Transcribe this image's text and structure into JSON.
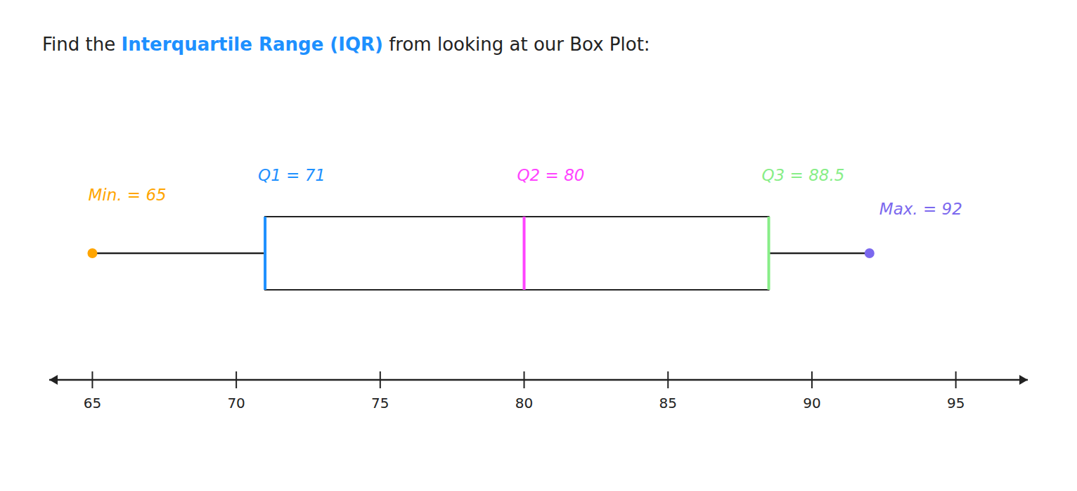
{
  "chart_data": {
    "type": "box",
    "title_parts": [
      {
        "text": "Find the "
      },
      {
        "text": "Interquartile Range (IQR)",
        "color": "#1E90FF"
      },
      {
        "text": " from looking at our Box Plot:"
      }
    ],
    "values": [
      65,
      71,
      80,
      88.5,
      92
    ],
    "value_labels": [
      "Min. = 65",
      "Q1 = 71",
      "Q2 = 80",
      "Q3 = 88.5",
      "Max. = 92"
    ],
    "colors": [
      "#FFA500",
      "#1E90FF",
      "#FF44FF",
      "#88EE88",
      "#7B68EE"
    ],
    "data_labels": true,
    "xlim": [
      63.5,
      97.5
    ],
    "xticks": [
      65,
      70,
      75,
      80,
      85,
      90,
      95
    ],
    "tick_labels": "x",
    "grid": false
  }
}
